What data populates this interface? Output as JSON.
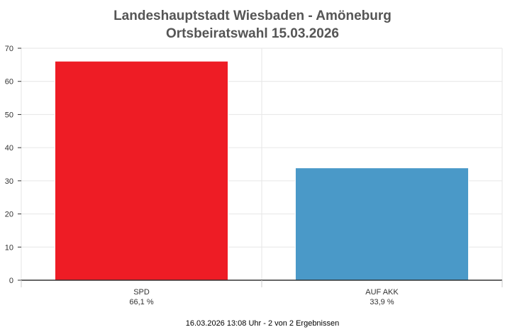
{
  "chart_data": {
    "type": "bar",
    "title": "Landeshauptstadt Wiesbaden - Amöneburg",
    "subtitle": "Ortsbeiratswahl 15.03.2026",
    "categories": [
      "SPD",
      "AUF AKK"
    ],
    "values": [
      66.1,
      33.9
    ],
    "value_labels": [
      "66,1 %",
      "33,9 %"
    ],
    "colors": [
      "#ee1c25",
      "#4a99c8"
    ],
    "ylim": [
      0,
      70
    ],
    "yticks": [
      "0",
      "10",
      "20",
      "30",
      "40",
      "50",
      "60",
      "70"
    ],
    "grid": true,
    "footer": "16.03.2026 13:08 Uhr - 2 von 2 Ergebnissen"
  }
}
